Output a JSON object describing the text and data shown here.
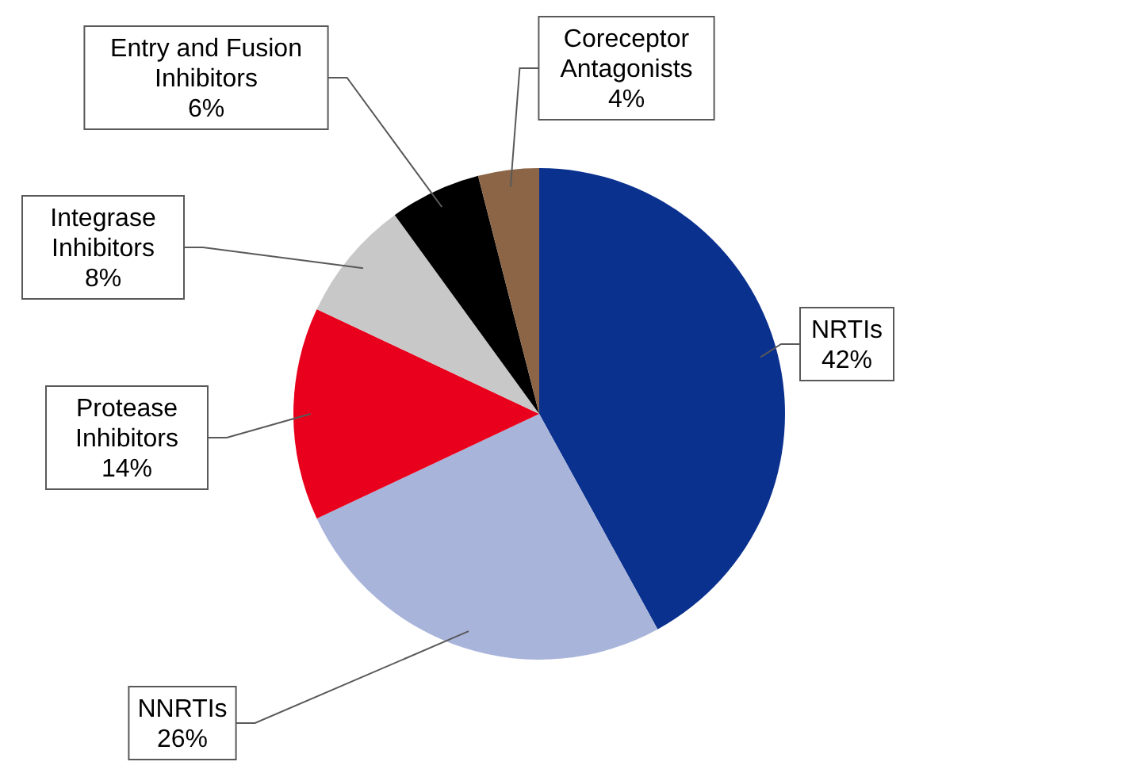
{
  "chart_data": {
    "type": "pie",
    "categories": [
      "NRTIs",
      "NNRTIs",
      "Protease Inhibitors",
      "Integrase Inhibitors",
      "Entry and Fusion Inhibitors",
      "Coreceptor Antagonists"
    ],
    "values": [
      42,
      26,
      14,
      8,
      6,
      4
    ],
    "colors": [
      "#0b318f",
      "#a8b4da",
      "#e8001c",
      "#c8c8c8",
      "#000000",
      "#8b6546"
    ],
    "value_labels": [
      "42%",
      "26%",
      "14%",
      "8%",
      "6%",
      "4%"
    ],
    "legend": false
  }
}
